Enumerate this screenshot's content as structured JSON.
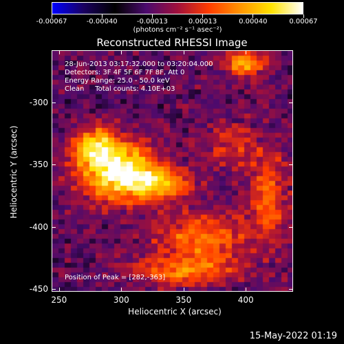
{
  "colorbar": {
    "tick_labels": [
      "-0.00067",
      "-0.00040",
      "-0.00013",
      "0.00013",
      "0.00040",
      "0.00067"
    ],
    "unit_label": "(photons cm⁻² s⁻¹ asec⁻²)",
    "colors": [
      "#0000ff",
      "#1a0060",
      "#000000",
      "#4b0a6e",
      "#a0103c",
      "#ff3c00",
      "#ff9400",
      "#ffe200",
      "#ffffff"
    ]
  },
  "title": "Reconstructed RHESSI Image",
  "info_lines": [
    "28-Jun-2013 03:17:32.000 to 03:20:04.000",
    "Detectors: 3F 4F 5F 6F 7F 8F, Att 0",
    "Energy Range: 25.0 - 50.0 keV",
    "Clean     Total counts: 4.10E+03"
  ],
  "peak_text": "Position of Peak = [282,-363]",
  "axes": {
    "xlabel": "Heliocentric X (arcsec)",
    "ylabel": "Heliocentric Y (arcsec)",
    "xticks": [
      "250",
      "300",
      "350",
      "400"
    ],
    "yticks": [
      "-300",
      "-350",
      "-400",
      "-450"
    ],
    "xlim": [
      244,
      438
    ],
    "ylim": [
      -452,
      -258
    ]
  },
  "date": "15-May-2022 01:19",
  "image": {
    "peak": [
      282,
      -363
    ]
  }
}
